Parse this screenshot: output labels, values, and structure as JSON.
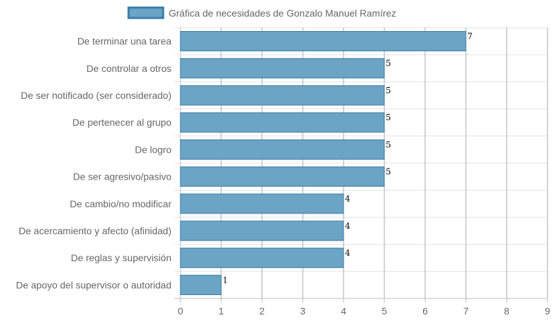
{
  "chart_data": {
    "type": "bar",
    "orientation": "horizontal",
    "title": "",
    "xlabel": "",
    "ylabel": "",
    "xlim": [
      0,
      9
    ],
    "x_ticks": [
      0,
      1,
      2,
      3,
      4,
      5,
      6,
      7,
      8,
      9
    ],
    "grid": true,
    "legend_position": "top",
    "categories": [
      "De terminar una tarea",
      "De controlar a otros",
      "De ser notificado (ser considerado)",
      "De pertenecer al grupo",
      "De logro",
      "De ser agresivo/pasivo",
      "De cambio/no modificar",
      "De acercamiento y afecto (afinidad)",
      "De reglas y supervisión",
      "De apoyo del supervisor o autoridad"
    ],
    "series": [
      {
        "name": "Gráfica de necesidades de Gonzalo Manuel Ramírez",
        "values": [
          7,
          5,
          5,
          5,
          5,
          5,
          4,
          4,
          4,
          1
        ],
        "color": "#6ba4c4",
        "border_color": "#3a7ca8"
      }
    ],
    "data_labels": [
      "7",
      "5",
      "5",
      "5",
      "5",
      "5",
      "4",
      "4",
      "4",
      "1"
    ]
  }
}
